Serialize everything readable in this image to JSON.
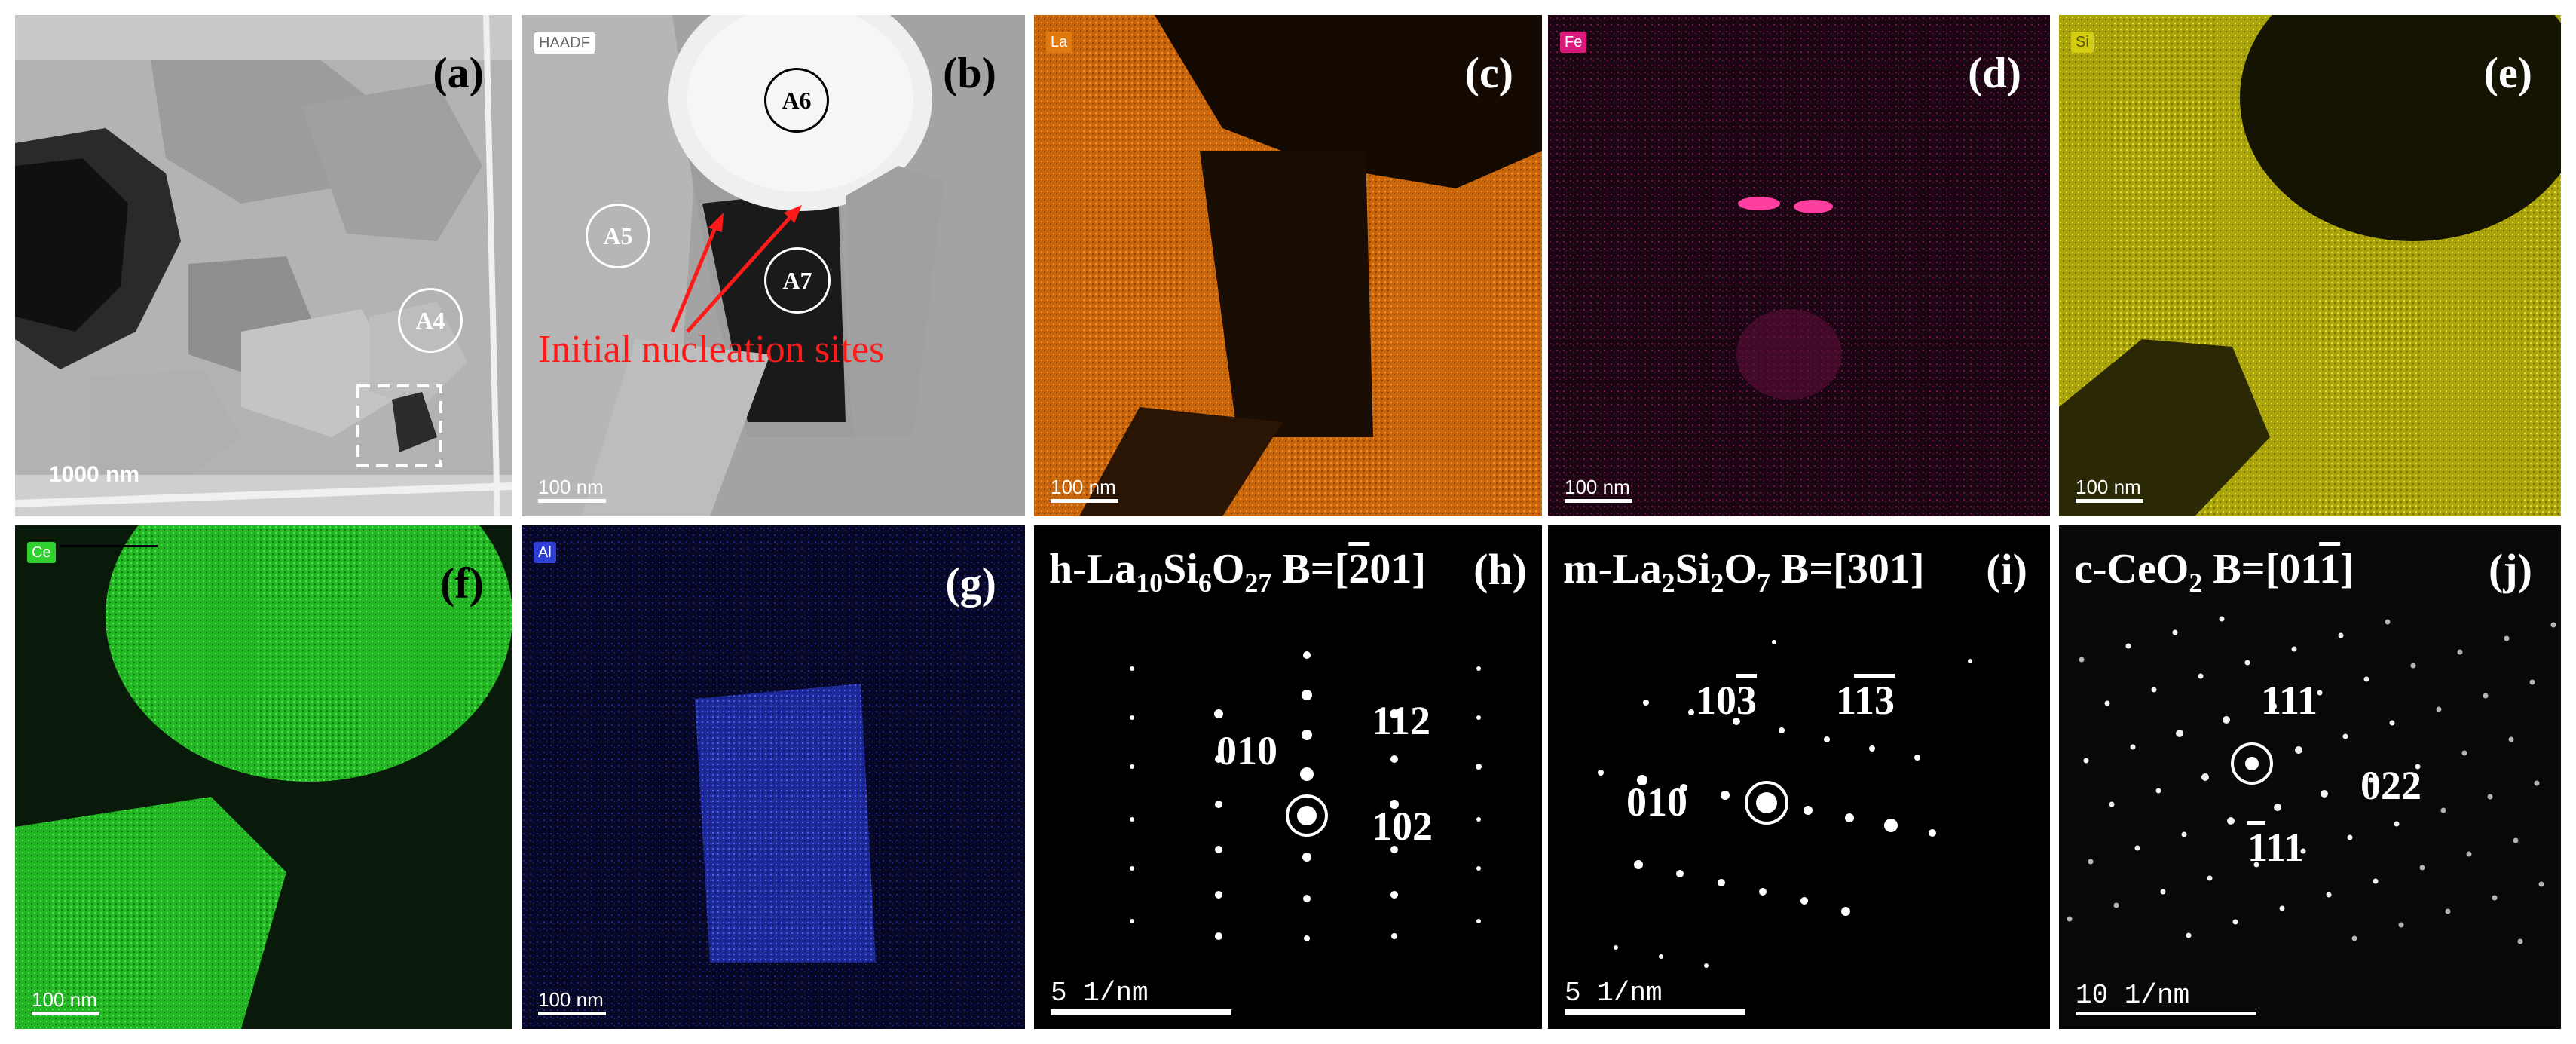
{
  "panels": {
    "a": {
      "label": "(a)",
      "scale": "1000 nm",
      "region": "A4"
    },
    "b": {
      "label": "(b)",
      "tag": "HAADF",
      "scale": "100 nm",
      "regions": [
        "A6",
        "A5",
        "A7"
      ],
      "annotation": "Initial nucleation sites"
    },
    "c": {
      "label": "(c)",
      "tag": "La",
      "scale": "100 nm",
      "color": "#e07a10"
    },
    "d": {
      "label": "(d)",
      "tag": "Fe",
      "scale": "100 nm",
      "color": "#d81b7a"
    },
    "e": {
      "label": "(e)",
      "tag": "Si",
      "scale": "100 nm",
      "color": "#d4cc12"
    },
    "f": {
      "label": "(f)",
      "tag": "Ce",
      "scale": "100 nm",
      "color": "#2fd12f"
    },
    "g": {
      "label": "(g)",
      "tag": "Al",
      "scale": "100 nm",
      "color": "#2d3fd6"
    },
    "h": {
      "label": "(h)",
      "title_pre": "h-La",
      "sub1": "10",
      "mid1": "Si",
      "sub2": "6",
      "mid2": "O",
      "sub3": "27",
      "zone_pre": " B=[",
      "zone_bar": "2",
      "zone_post": "01]",
      "idx1": "010",
      "idx2": "112",
      "idx3": "102",
      "scale": "5 1/nm"
    },
    "i": {
      "label": "(i)",
      "title_pre": "m-La",
      "sub1": "2",
      "mid1": "Si",
      "sub2": "2",
      "mid2": "O",
      "sub3": "7",
      "zone": " B=[301]",
      "idx1_pre": "10",
      "idx1_bar": "3",
      "idx2_pre": "1",
      "idx2_bar": "13",
      "idx3": "010",
      "scale": "5 1/nm"
    },
    "j": {
      "label": "(j)",
      "title_pre": "c-CeO",
      "sub1": "2",
      "zone_pre": "  B=[01",
      "zone_bar": "1",
      "zone_post": "]",
      "idx1": "111",
      "idx2": "022",
      "idx3_bar": "1",
      "idx3_post": "11",
      "scale": "10 1/nm"
    }
  }
}
